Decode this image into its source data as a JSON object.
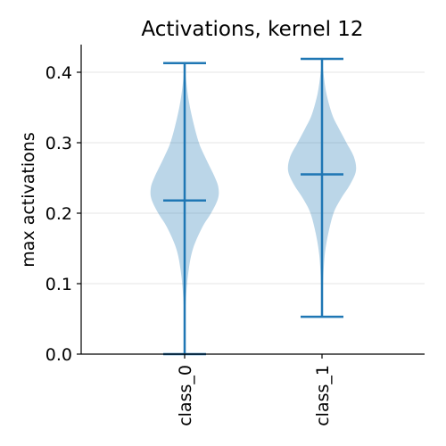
{
  "chart_data": {
    "type": "violin",
    "title": "Activations, kernel 12",
    "xlabel": "",
    "ylabel": "max activations",
    "categories": [
      "class_0",
      "class_1"
    ],
    "ylim": [
      0.0,
      0.44
    ],
    "yticks": [
      0.0,
      0.1,
      0.2,
      0.3,
      0.4
    ],
    "ytick_labels": [
      "0.0",
      "0.1",
      "0.2",
      "0.3",
      "0.4"
    ],
    "grid": "horizontal",
    "colors": {
      "body": "#1f77b4",
      "body_alpha": 0.3,
      "lines": "#1f77b4"
    },
    "violins": [
      {
        "category": "class_0",
        "min": 0.0,
        "max": 0.413,
        "median": 0.218,
        "density": [
          [
            0.0,
            0.0
          ],
          [
            0.04,
            0.01
          ],
          [
            0.08,
            0.04
          ],
          [
            0.12,
            0.12
          ],
          [
            0.15,
            0.25
          ],
          [
            0.18,
            0.52
          ],
          [
            0.2,
            0.78
          ],
          [
            0.22,
            0.98
          ],
          [
            0.235,
            1.0
          ],
          [
            0.25,
            0.9
          ],
          [
            0.28,
            0.6
          ],
          [
            0.3,
            0.42
          ],
          [
            0.33,
            0.25
          ],
          [
            0.36,
            0.12
          ],
          [
            0.39,
            0.04
          ],
          [
            0.413,
            0.0
          ]
        ]
      },
      {
        "category": "class_1",
        "min": 0.053,
        "max": 0.419,
        "median": 0.255,
        "density": [
          [
            0.053,
            0.0
          ],
          [
            0.1,
            0.03
          ],
          [
            0.14,
            0.08
          ],
          [
            0.17,
            0.18
          ],
          [
            0.2,
            0.34
          ],
          [
            0.22,
            0.55
          ],
          [
            0.24,
            0.82
          ],
          [
            0.26,
            1.0
          ],
          [
            0.28,
            0.94
          ],
          [
            0.3,
            0.72
          ],
          [
            0.32,
            0.5
          ],
          [
            0.34,
            0.3
          ],
          [
            0.37,
            0.13
          ],
          [
            0.4,
            0.04
          ],
          [
            0.419,
            0.0
          ]
        ]
      }
    ]
  }
}
